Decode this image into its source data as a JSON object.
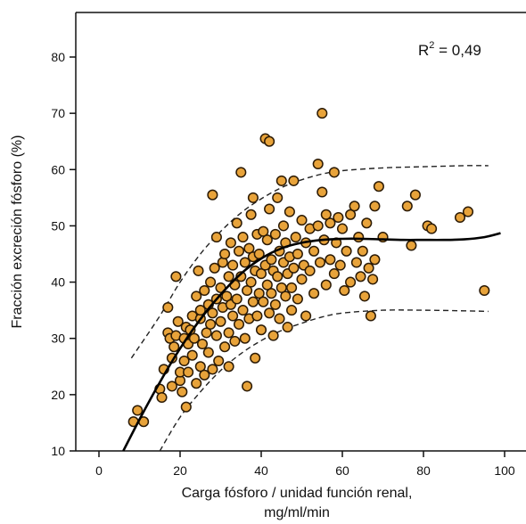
{
  "chart_data": {
    "type": "scatter",
    "title": "",
    "xlabel": "Carga fósforo / unidad función renal,",
    "xlabel_line2": "mg/ml/min",
    "ylabel": "Fracción excreción fósforo (%)",
    "xlim": [
      -7,
      105
    ],
    "ylim": [
      10,
      88
    ],
    "xticks": [
      0,
      20,
      40,
      60,
      80,
      100
    ],
    "yticks": [
      10,
      20,
      30,
      40,
      50,
      60,
      70,
      80
    ],
    "grid": false,
    "legend": "none",
    "annotation": {
      "base": "R",
      "sup": "2",
      "rest": " = 0,49"
    },
    "colors": {
      "point_fill": "#E8A33A",
      "point_edge": "#2B1A05",
      "line": "#000000"
    },
    "fit_curve": {
      "x": [
        6,
        10,
        15,
        20,
        25,
        30,
        35,
        40,
        45,
        50,
        55,
        60,
        65,
        70,
        75,
        80,
        85,
        90,
        95,
        99
      ],
      "y": [
        10,
        15.6,
        22.2,
        28.2,
        33.4,
        37.8,
        41.5,
        44.2,
        46.0,
        47.0,
        47.5,
        47.7,
        47.7,
        47.6,
        47.5,
        47.5,
        47.5,
        47.6,
        48.0,
        48.7
      ]
    },
    "upper_band": {
      "x": [
        8,
        15,
        20,
        25,
        30,
        35,
        40,
        45,
        50,
        55,
        60,
        70,
        80,
        90,
        96
      ],
      "y": [
        26.5,
        34.0,
        40.0,
        45.0,
        49.0,
        52.3,
        54.8,
        56.8,
        58.2,
        59.2,
        59.8,
        60.3,
        60.5,
        60.7,
        60.7
      ]
    },
    "lower_band": {
      "x": [
        15,
        20,
        25,
        30,
        35,
        40,
        45,
        50,
        55,
        60,
        70,
        80,
        90,
        96
      ],
      "y": [
        10,
        16.0,
        20.5,
        24.3,
        27.3,
        29.6,
        31.4,
        32.7,
        33.8,
        34.5,
        35.0,
        35.0,
        34.9,
        34.8
      ],
      "dash": true
    },
    "points": [
      [
        8.5,
        15.2
      ],
      [
        9.5,
        17.2
      ],
      [
        11,
        15.2
      ],
      [
        15,
        21.0
      ],
      [
        15.5,
        19.5
      ],
      [
        16,
        24.5
      ],
      [
        17,
        31.0
      ],
      [
        17.5,
        30.0
      ],
      [
        17,
        35.5
      ],
      [
        18,
        21.5
      ],
      [
        18,
        26.5
      ],
      [
        18.5,
        28.5
      ],
      [
        19,
        30.5
      ],
      [
        19.5,
        33.0
      ],
      [
        19,
        41.0
      ],
      [
        20,
        22.5
      ],
      [
        20,
        24.0
      ],
      [
        20.5,
        20.5
      ],
      [
        21,
        26.0
      ],
      [
        21,
        30.0
      ],
      [
        21.5,
        32.0
      ],
      [
        21.5,
        17.8
      ],
      [
        22,
        24.0
      ],
      [
        22,
        29.0
      ],
      [
        22.5,
        31.5
      ],
      [
        23,
        27.0
      ],
      [
        23,
        34.0
      ],
      [
        23.5,
        30.0
      ],
      [
        24,
        22.0
      ],
      [
        24,
        37.5
      ],
      [
        24.5,
        42.0
      ],
      [
        25,
        25.0
      ],
      [
        25,
        33.5
      ],
      [
        25,
        35.0
      ],
      [
        25.5,
        29.0
      ],
      [
        26,
        23.5
      ],
      [
        26,
        38.5
      ],
      [
        26.5,
        31.0
      ],
      [
        27,
        27.5
      ],
      [
        27,
        36.0
      ],
      [
        27.5,
        40.0
      ],
      [
        27.5,
        32.5
      ],
      [
        28,
        55.5
      ],
      [
        28,
        24.5
      ],
      [
        28,
        34.5
      ],
      [
        28.5,
        42.5
      ],
      [
        29,
        30.5
      ],
      [
        29,
        37.0
      ],
      [
        29,
        48.0
      ],
      [
        29.5,
        26.0
      ],
      [
        30,
        33.0
      ],
      [
        30,
        39.0
      ],
      [
        30.5,
        43.5
      ],
      [
        30.5,
        35.5
      ],
      [
        31,
        28.5
      ],
      [
        31,
        45.0
      ],
      [
        31.5,
        37.5
      ],
      [
        32,
        31.0
      ],
      [
        32,
        41.0
      ],
      [
        32,
        25.0
      ],
      [
        32.5,
        36.0
      ],
      [
        32.5,
        47.0
      ],
      [
        33,
        34.0
      ],
      [
        33,
        43.0
      ],
      [
        33.5,
        29.5
      ],
      [
        33.5,
        39.5
      ],
      [
        34,
        50.5
      ],
      [
        34,
        37.0
      ],
      [
        34.5,
        32.5
      ],
      [
        34.5,
        45.5
      ],
      [
        35,
        59.5
      ],
      [
        35,
        41.0
      ],
      [
        35.5,
        35.0
      ],
      [
        35.5,
        48.0
      ],
      [
        36,
        30.0
      ],
      [
        36,
        43.5
      ],
      [
        36.5,
        38.5
      ],
      [
        36.5,
        21.5
      ],
      [
        37,
        46.0
      ],
      [
        37,
        33.5
      ],
      [
        37.5,
        52.0
      ],
      [
        37.5,
        40.0
      ],
      [
        38,
        36.5
      ],
      [
        38,
        55.0
      ],
      [
        38,
        44.5
      ],
      [
        38.5,
        42.0
      ],
      [
        38.5,
        26.5
      ],
      [
        39,
        48.5
      ],
      [
        39,
        34.0
      ],
      [
        39.5,
        38.0
      ],
      [
        39.5,
        45.0
      ],
      [
        40,
        41.5
      ],
      [
        40,
        31.5
      ],
      [
        40.5,
        49.0
      ],
      [
        40.5,
        36.5
      ],
      [
        41,
        65.5
      ],
      [
        41,
        43.0
      ],
      [
        41.5,
        39.5
      ],
      [
        41.5,
        47.5
      ],
      [
        42,
        34.5
      ],
      [
        42,
        65.0
      ],
      [
        42,
        53.0
      ],
      [
        42.5,
        44.0
      ],
      [
        42.5,
        38.0
      ],
      [
        43,
        42.0
      ],
      [
        43,
        30.5
      ],
      [
        43.5,
        48.5
      ],
      [
        43.5,
        36.0
      ],
      [
        44,
        55.0
      ],
      [
        44,
        41.0
      ],
      [
        44.5,
        45.5
      ],
      [
        44.5,
        33.5
      ],
      [
        45,
        58.0
      ],
      [
        45,
        39.0
      ],
      [
        45.5,
        50.0
      ],
      [
        45.5,
        43.5
      ],
      [
        46,
        37.5
      ],
      [
        46,
        47.0
      ],
      [
        46.5,
        41.5
      ],
      [
        46.5,
        32.0
      ],
      [
        47,
        52.5
      ],
      [
        47,
        44.5
      ],
      [
        47.5,
        39.0
      ],
      [
        47.5,
        35.0
      ],
      [
        48,
        58.0
      ],
      [
        48,
        42.5
      ],
      [
        48.5,
        48.0
      ],
      [
        49,
        37.0
      ],
      [
        49,
        45.0
      ],
      [
        50,
        51.0
      ],
      [
        50,
        40.5
      ],
      [
        50.5,
        43.0
      ],
      [
        51,
        34.0
      ],
      [
        51,
        47.0
      ],
      [
        52,
        49.5
      ],
      [
        52,
        42.0
      ],
      [
        53,
        38.0
      ],
      [
        53,
        45.5
      ],
      [
        54,
        61.0
      ],
      [
        54,
        50.0
      ],
      [
        54.5,
        43.5
      ],
      [
        55,
        70.0
      ],
      [
        55,
        56.0
      ],
      [
        55.5,
        47.5
      ],
      [
        56,
        39.5
      ],
      [
        56,
        52.0
      ],
      [
        57,
        44.0
      ],
      [
        57,
        50.5
      ],
      [
        58,
        59.5
      ],
      [
        58,
        41.5
      ],
      [
        58.5,
        47.0
      ],
      [
        59,
        51.5
      ],
      [
        59.5,
        43.0
      ],
      [
        60,
        49.5
      ],
      [
        60.5,
        38.5
      ],
      [
        61,
        45.5
      ],
      [
        62,
        40.0
      ],
      [
        62,
        52.0
      ],
      [
        63,
        53.5
      ],
      [
        63.5,
        43.5
      ],
      [
        64,
        48.0
      ],
      [
        64.5,
        41.0
      ],
      [
        65,
        45.5
      ],
      [
        65.5,
        37.5
      ],
      [
        66,
        50.5
      ],
      [
        66.5,
        42.5
      ],
      [
        67,
        34.0
      ],
      [
        67.5,
        40.5
      ],
      [
        68,
        53.5
      ],
      [
        68,
        44.0
      ],
      [
        69,
        57.0
      ],
      [
        70,
        48.0
      ],
      [
        76,
        53.5
      ],
      [
        77,
        46.5
      ],
      [
        78,
        55.5
      ],
      [
        81,
        50.0
      ],
      [
        82,
        49.5
      ],
      [
        89,
        51.5
      ],
      [
        91,
        52.5
      ],
      [
        95,
        38.5
      ]
    ]
  }
}
